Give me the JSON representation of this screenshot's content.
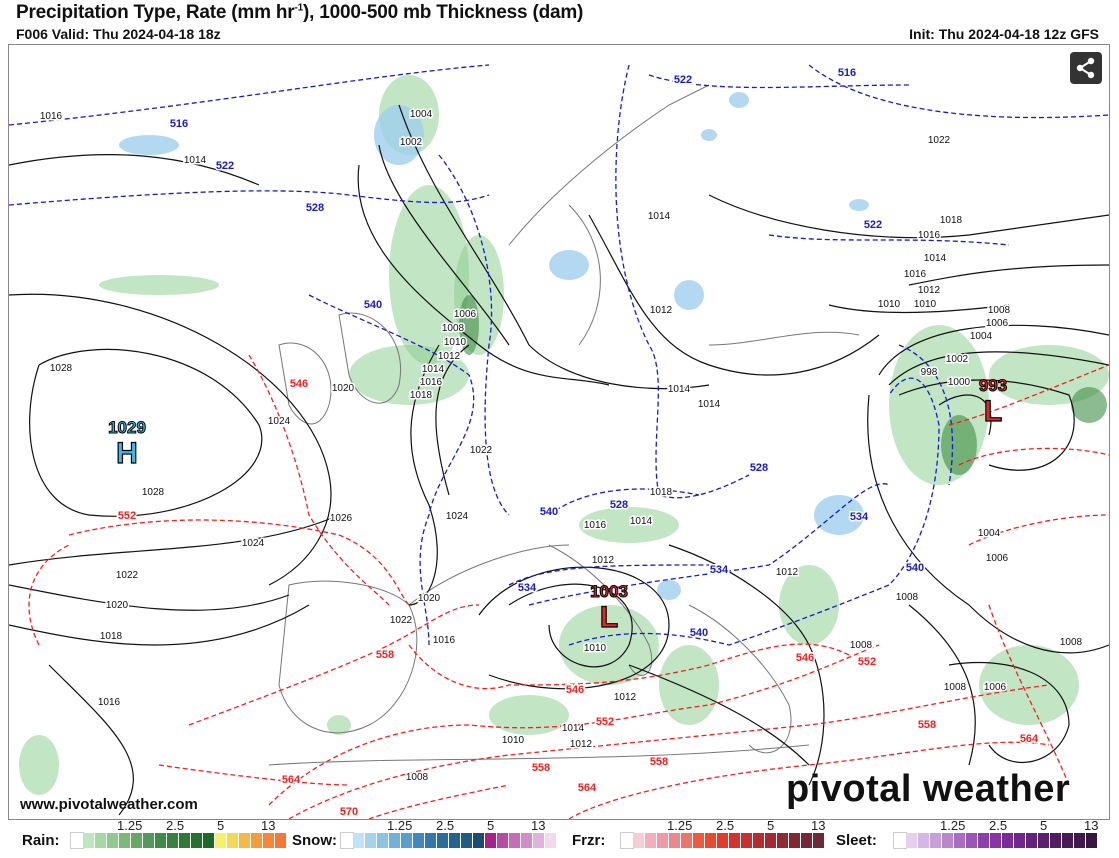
{
  "header": {
    "title_main": "Precipitation Type, Rate (mm hr",
    "title_sup": "-1",
    "title_end": "), 1000-500 mb Thickness (dam)",
    "valid": "F006 Valid: Thu 2024-04-18 18z",
    "init": "Init: Thu 2024-04-18 12z GFS"
  },
  "share_icon": "share-icon",
  "footer": {
    "website": "www.pivotalweather.com",
    "logo": "pivotal weather"
  },
  "colors": {
    "isobar": "#111111",
    "thickness_cold": "#1a1acc",
    "thickness_warm": "#ee2222",
    "high": "#3db8f0",
    "low": "#e8262a"
  },
  "centers": [
    {
      "type": "H",
      "value": "1029"
    },
    {
      "type": "L",
      "value": "1003"
    },
    {
      "type": "L",
      "value": "993"
    }
  ],
  "isobar_labels": [
    "1016",
    "1014",
    "1004",
    "1002",
    "1006",
    "1008",
    "1010",
    "1012",
    "1014",
    "1016",
    "1018",
    "1020",
    "1024",
    "1028",
    "1028",
    "1026",
    "1024",
    "1022",
    "1020",
    "1018",
    "1016",
    "1022",
    "1024",
    "1022",
    "1016",
    "1014",
    "1012",
    "1018",
    "1020",
    "1016",
    "1010",
    "1012",
    "1014",
    "1012",
    "1010",
    "1008",
    "1014",
    "1012",
    "1010",
    "1016",
    "1018",
    "1022",
    "1014",
    "1016",
    "1012",
    "1010",
    "1008",
    "1006",
    "1004",
    "1002",
    "1000",
    "998",
    "1004",
    "1006",
    "1008",
    "1008",
    "1006",
    "1008",
    "1012",
    "1014",
    "1014",
    "1008"
  ],
  "thickness_labels": {
    "cold": [
      "516",
      "522",
      "528",
      "540",
      "522",
      "516",
      "522",
      "528",
      "528",
      "534",
      "534",
      "534",
      "540",
      "540",
      "540"
    ],
    "warm": [
      "546",
      "552",
      "558",
      "546",
      "552",
      "558",
      "564",
      "564",
      "570",
      "558",
      "546",
      "552",
      "558",
      "564"
    ]
  },
  "legends": [
    {
      "label": "Rain:",
      "ticks": [
        "1.25",
        "2.5",
        "5",
        "13"
      ],
      "colors": [
        "#ffffff",
        "#bde8be",
        "#a5d9a4",
        "#8fca8d",
        "#7dba7a",
        "#68a866",
        "#56975a",
        "#3f8d45",
        "#398140",
        "#2f7a38",
        "#267030",
        "#1c6a28",
        "#f6f06a",
        "#f5d75a",
        "#f4b948",
        "#f49c3c",
        "#f5863a",
        "#f57838"
      ]
    },
    {
      "label": "Snow:",
      "ticks": [
        "1.25",
        "2.5",
        "5",
        "13"
      ],
      "colors": [
        "#ffffff",
        "#bfe3f4",
        "#a6d3ec",
        "#8cc2e2",
        "#72b2d8",
        "#5a9fcc",
        "#4189bd",
        "#3477ab",
        "#2b6c9c",
        "#24628f",
        "#1f5b82",
        "#1a4d70",
        "#a8208a",
        "#b84ba2",
        "#c46fb5",
        "#d28fc6",
        "#e0b3d9",
        "#f3d8ee"
      ]
    },
    {
      "label": "Frzr:",
      "ticks": [
        "1.25",
        "2.5",
        "5",
        "13"
      ],
      "colors": [
        "#ffffff",
        "#f6cdd6",
        "#f2aebc",
        "#ee9aa4",
        "#ea8890",
        "#e9776e",
        "#ec5a44",
        "#ea4a2e",
        "#e33a2e",
        "#d3342f",
        "#c53030",
        "#b52d31",
        "#a22a30",
        "#922a32",
        "#822833",
        "#742734",
        "#6a2a3a"
      ]
    },
    {
      "label": "Sleet:",
      "ticks": [
        "1.25",
        "2.5",
        "5",
        "13"
      ],
      "colors": [
        "#ffffff",
        "#e4d0ee",
        "#d5b6e4",
        "#c79fd9",
        "#b887cd",
        "#a96dc1",
        "#9a56b6",
        "#8c3fab",
        "#8a33a6",
        "#7c2a98",
        "#70268a",
        "#65227c",
        "#5b1f6f",
        "#521c63",
        "#491a57",
        "#40184b",
        "#38173f"
      ]
    }
  ]
}
